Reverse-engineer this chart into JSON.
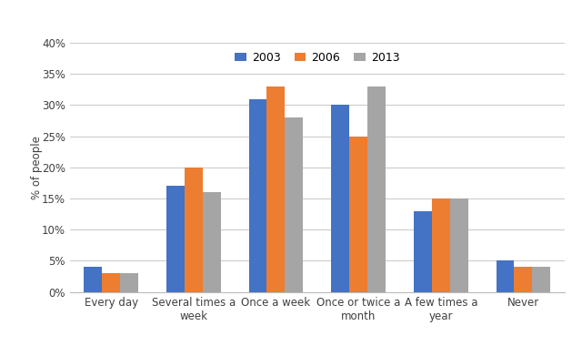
{
  "categories": [
    "Every day",
    "Several times a\nweek",
    "Once a week",
    "Once or twice a\nmonth",
    "A few times a\nyear",
    "Never"
  ],
  "series": {
    "2003": [
      4,
      17,
      31,
      30,
      13,
      5
    ],
    "2006": [
      3,
      20,
      33,
      25,
      15,
      4
    ],
    "2013": [
      3,
      16,
      28,
      33,
      15,
      4
    ]
  },
  "colors": {
    "2003": "#4472C4",
    "2006": "#ED7D31",
    "2013": "#A5A5A5"
  },
  "ylabel": "% of people",
  "ylim": [
    0,
    40
  ],
  "yticks": [
    0,
    5,
    10,
    15,
    20,
    25,
    30,
    35,
    40
  ],
  "ytick_labels": [
    "0%",
    "5%",
    "10%",
    "15%",
    "20%",
    "25%",
    "30%",
    "35%",
    "40%"
  ],
  "legend_labels": [
    "2003",
    "2006",
    "2013"
  ],
  "background_color": "#FFFFFF",
  "grid_color": "#CCCCCC",
  "bar_width": 0.22
}
